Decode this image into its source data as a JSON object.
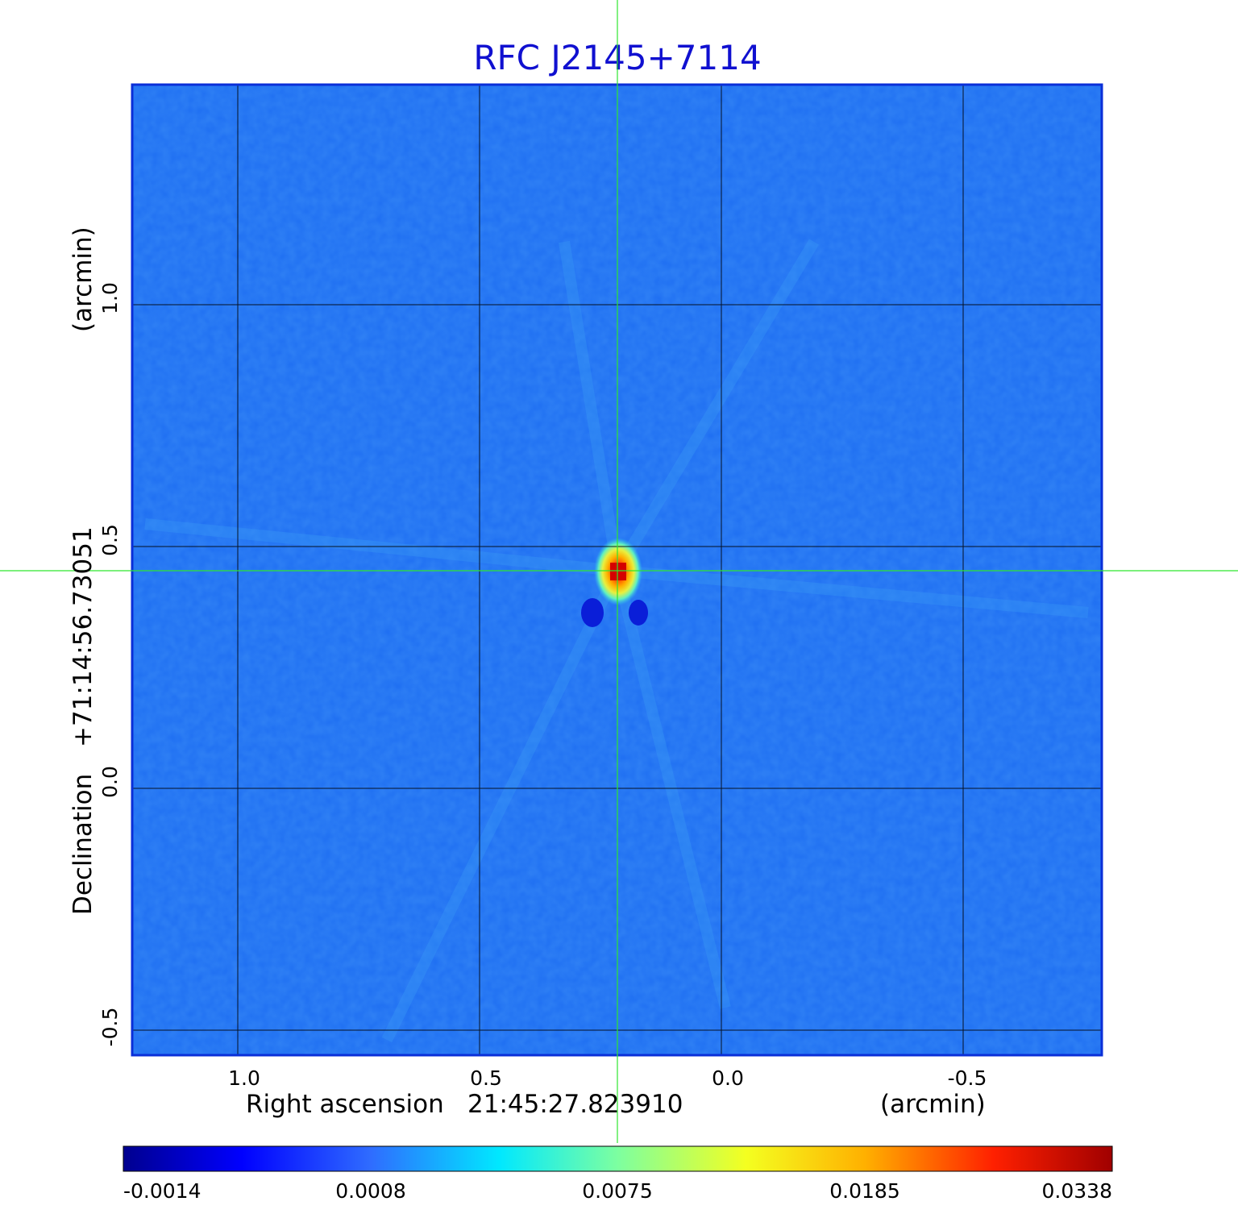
{
  "title": "RFC J2145+7114",
  "x_axis": {
    "label_prefix": "Right ascension",
    "center_value": "21:45:27.823910",
    "unit": "(arcmin)",
    "ticks": [
      "1.0",
      "0.5",
      "0.0",
      "-0.5"
    ],
    "tick_values": [
      1.0,
      0.5,
      0.0,
      -0.5
    ],
    "range": [
      1.22,
      -0.79
    ]
  },
  "y_axis": {
    "label_prefix": "Declination",
    "center_value": "+71:14:56.73051",
    "unit": "(arcmin)",
    "ticks": [
      "1.0",
      "0.5",
      "0.0",
      "-0.5"
    ],
    "tick_values": [
      1.0,
      0.5,
      0.0,
      -0.5
    ],
    "range": [
      -0.55,
      1.45
    ]
  },
  "colorbar": {
    "ticks": [
      "-0.0014",
      "0.0008",
      "0.0075",
      "0.0185",
      "0.0338"
    ],
    "colormap": "jet"
  },
  "source_peak": {
    "x_arcmin": 0.21,
    "y_arcmin": 0.45
  },
  "crosshair": {
    "x_arcmin": 0.21,
    "y_arcmin": 0.45,
    "color": "#2ee62e"
  },
  "colors": {
    "title": "#1010d0",
    "frame": "#0a2fd8",
    "background_map": "#1f6ff2",
    "grid": "#000000"
  }
}
